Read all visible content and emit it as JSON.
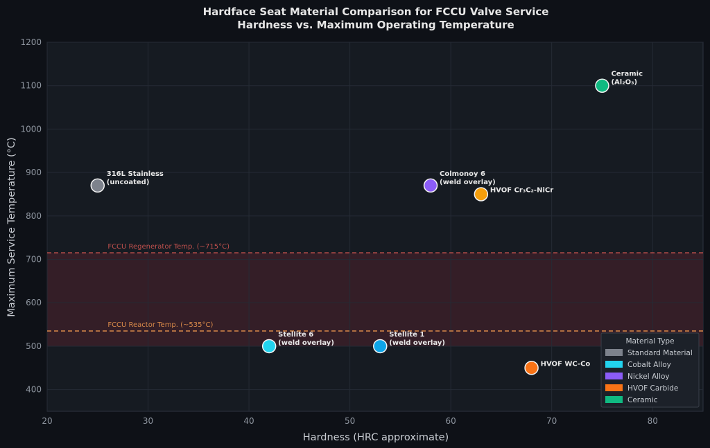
{
  "chart_data": {
    "type": "scatter",
    "title": "Hardface Seat Material Comparison for FCCU Valve Service",
    "subtitle": "Hardness vs. Maximum Operating Temperature",
    "xlabel": "Hardness (HRC approximate)",
    "ylabel": "Maximum Service Temperature (°C)",
    "xlim": [
      20,
      85
    ],
    "ylim": [
      350,
      1200
    ],
    "xticks": [
      20,
      30,
      40,
      50,
      60,
      70,
      80
    ],
    "yticks": [
      400,
      500,
      600,
      700,
      800,
      900,
      1000,
      1100,
      1200
    ],
    "grid": true,
    "points": [
      {
        "x": 25,
        "y": 870,
        "label": [
          "316L Stainless",
          "(uncoated)"
        ],
        "type": "Standard Material"
      },
      {
        "x": 42,
        "y": 500,
        "label": [
          "Stellite 6",
          "(weld overlay)"
        ],
        "type": "Cobalt Alloy"
      },
      {
        "x": 53,
        "y": 500,
        "label": [
          "Stellite 1",
          "(weld overlay)"
        ],
        "type": "Cobalt Alloy"
      },
      {
        "x": 58,
        "y": 870,
        "label": [
          "Colmonoy 6",
          "(weld overlay)"
        ],
        "type": "Nickel Alloy"
      },
      {
        "x": 63,
        "y": 850,
        "label": [
          "HVOF Cr₃C₂-NiCr"
        ],
        "type": "HVOF Carbide"
      },
      {
        "x": 68,
        "y": 450,
        "label": [
          "HVOF WC-Co"
        ],
        "type": "HVOF Carbide"
      },
      {
        "x": 75,
        "y": 1100,
        "label": [
          "Ceramic",
          "(Al₂O₃)"
        ],
        "type": "Ceramic"
      }
    ],
    "shaded_band": {
      "y0": 500,
      "y1": 715,
      "color": "#3a1f28"
    },
    "reference_lines": [
      {
        "y": 715,
        "label": "FCCU Regenerator Temp. (~715°C)",
        "color": "#c0504d"
      },
      {
        "y": 535,
        "label": "FCCU Reactor Temp. (~535°C)",
        "color": "#d98a4a"
      }
    ],
    "legend": {
      "title": "Material Type",
      "position": "bottom-right",
      "items": [
        {
          "name": "Standard Material",
          "color": "#7d828c"
        },
        {
          "name": "Cobalt Alloy",
          "color": "#22d3ee"
        },
        {
          "name": "Nickel Alloy",
          "color": "#8b5cf6"
        },
        {
          "name": "HVOF Carbide",
          "color": "#f97316"
        },
        {
          "name": "Ceramic",
          "color": "#10b981"
        }
      ]
    },
    "point_colors": {
      "316L Stainless": "#7d828c",
      "Stellite 6": "#22d3ee",
      "Stellite 1": "#0ea5e9",
      "Colmonoy 6": "#8b5cf6",
      "HVOF Cr₃C₂-NiCr": "#f59e0b",
      "HVOF WC-Co": "#f97316",
      "Ceramic": "#10b981"
    }
  }
}
